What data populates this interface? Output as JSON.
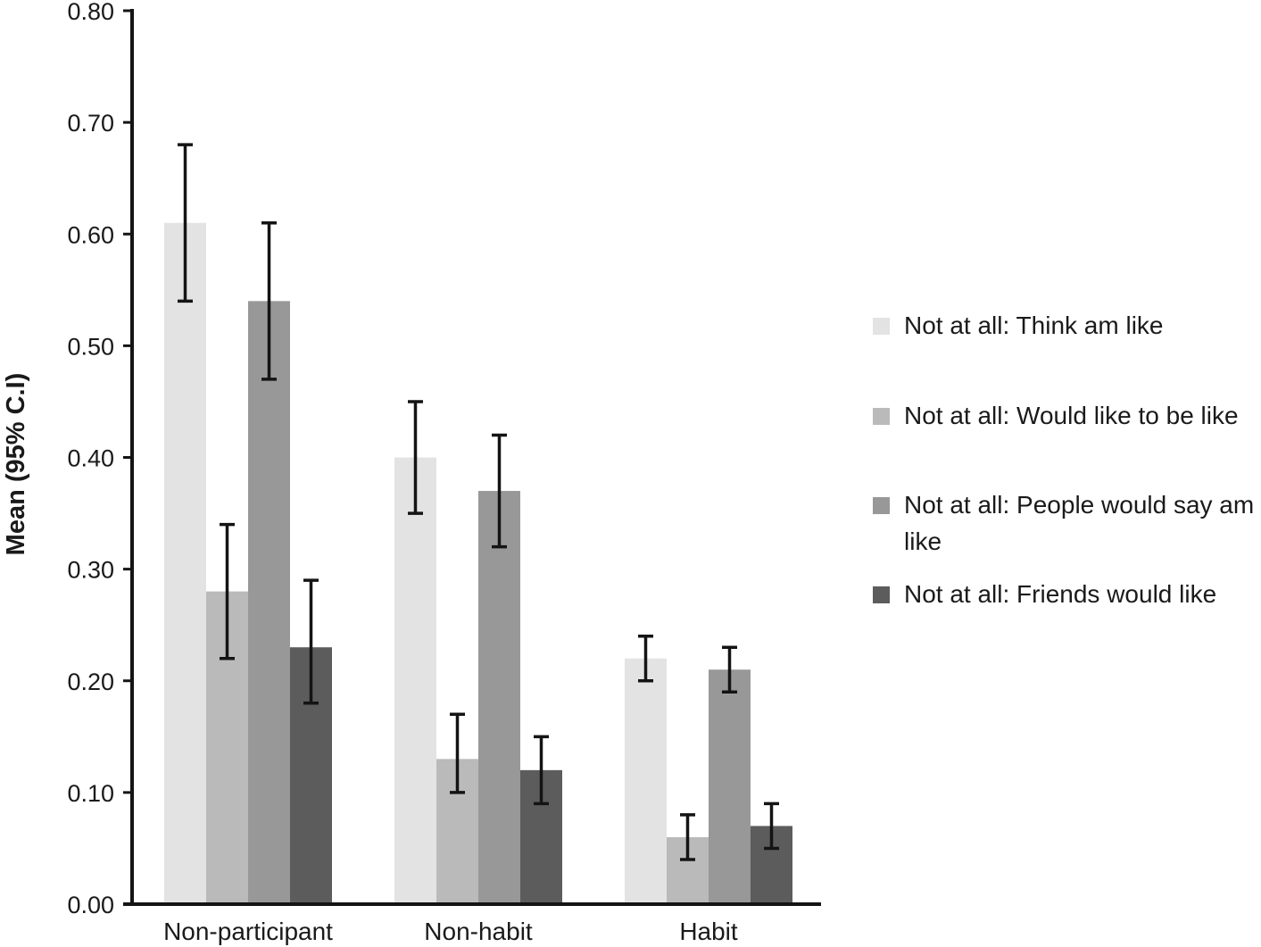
{
  "chart_data": {
    "type": "bar",
    "title": "",
    "xlabel": "",
    "ylabel": "Mean (95% C.I)",
    "ylim": [
      0.0,
      0.8
    ],
    "yticks": [
      "0.00",
      "0.10",
      "0.20",
      "0.30",
      "0.40",
      "0.50",
      "0.60",
      "0.70",
      "0.80"
    ],
    "grid": false,
    "legend_position": "right",
    "categories": [
      "Non-participant",
      "Non-habit",
      "Habit"
    ],
    "series": [
      {
        "name": "Not at all: Think am like",
        "color": "#e3e3e3",
        "values": [
          0.61,
          0.4,
          0.22
        ],
        "ci_low": [
          0.54,
          0.35,
          0.2
        ],
        "ci_high": [
          0.68,
          0.45,
          0.24
        ]
      },
      {
        "name": "Not at all: Would like to be like",
        "color": "#bababa",
        "values": [
          0.28,
          0.13,
          0.06
        ],
        "ci_low": [
          0.22,
          0.1,
          0.04
        ],
        "ci_high": [
          0.34,
          0.17,
          0.08
        ]
      },
      {
        "name": "Not at all: People would say am like",
        "color": "#989898",
        "values": [
          0.54,
          0.37,
          0.21
        ],
        "ci_low": [
          0.47,
          0.32,
          0.19
        ],
        "ci_high": [
          0.61,
          0.42,
          0.23
        ]
      },
      {
        "name": "Not at all: Friends would like",
        "color": "#5c5c5c",
        "values": [
          0.23,
          0.12,
          0.07
        ],
        "ci_low": [
          0.18,
          0.09,
          0.05
        ],
        "ci_high": [
          0.29,
          0.15,
          0.09
        ]
      }
    ]
  },
  "legend": {
    "items": [
      {
        "label": "Not at all: Think am like",
        "color": "#e3e3e3"
      },
      {
        "label": "Not at all: Would like to be like",
        "color": "#bababa"
      },
      {
        "label": "Not at all: People would say am like",
        "color": "#989898"
      },
      {
        "label": "Not at all: Friends would like",
        "color": "#5c5c5c"
      }
    ]
  }
}
